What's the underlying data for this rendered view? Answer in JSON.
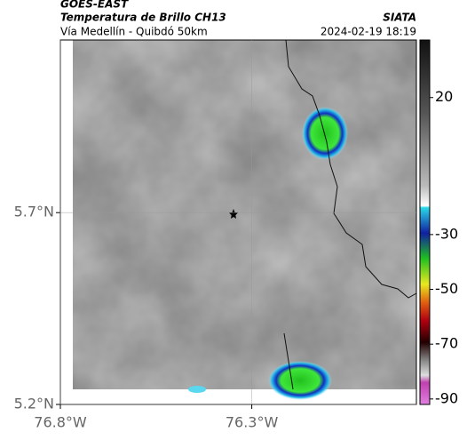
{
  "header": {
    "source": "GOES-EAST",
    "title": "Temperatura de Brillo CH13",
    "org": "SIATA",
    "subtitle": "Vía Medellín - Quibdó 50km",
    "datetime": "2024-02-19 18:19"
  },
  "map": {
    "lat_lim": [
      5.2,
      6.15
    ],
    "lon_lim": [
      -76.8,
      -75.87
    ],
    "lat_ticks": [
      {
        "value": 5.7,
        "label": "5.7°N"
      },
      {
        "value": 5.2,
        "label": "5.2°N"
      }
    ],
    "lon_ticks": [
      {
        "value": -76.8,
        "label": "76.8°W"
      },
      {
        "value": -76.3,
        "label": "76.3°W"
      }
    ],
    "grid": true
  },
  "colorbar": {
    "lim": [
      -92,
      41
    ],
    "ticks": [
      20,
      -30,
      -50,
      -70,
      -90
    ]
  }
}
